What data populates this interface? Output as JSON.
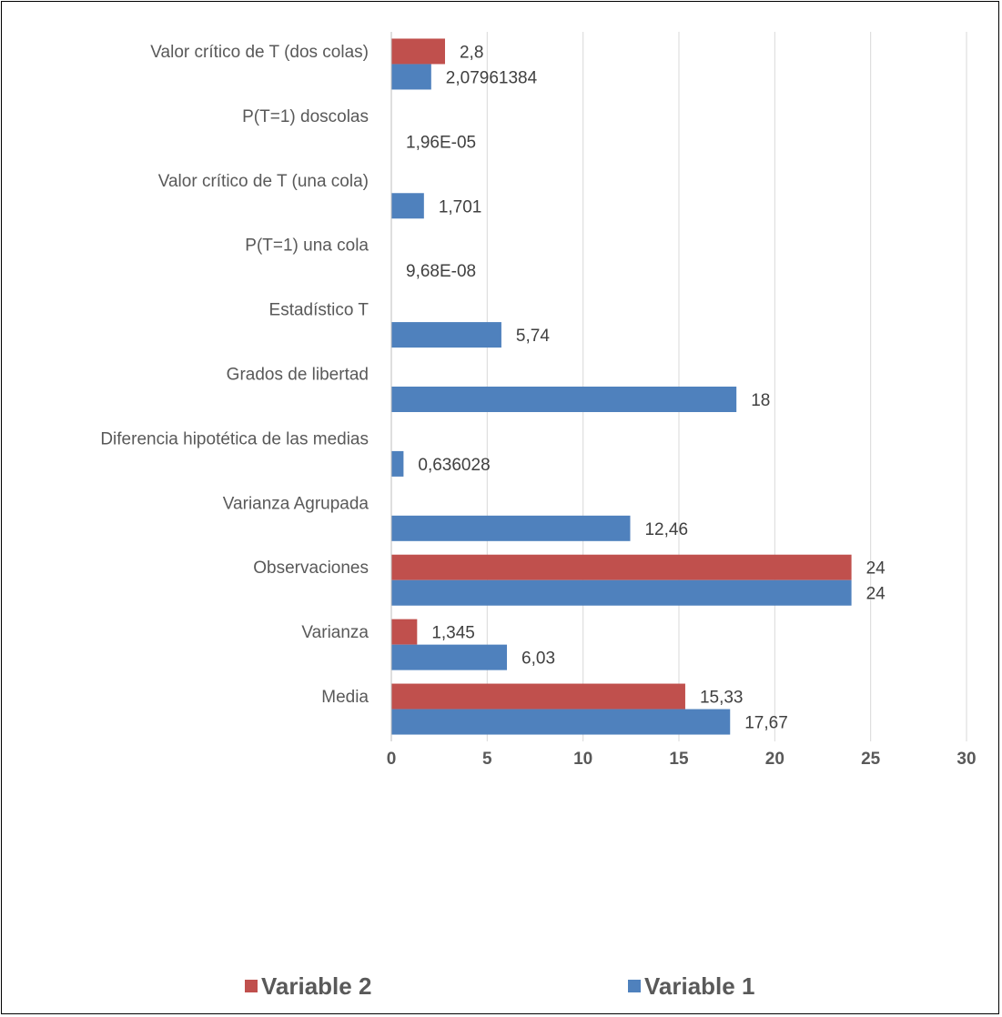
{
  "chart_data": {
    "type": "bar",
    "orientation": "horizontal",
    "categories": [
      "Media",
      "Varianza",
      "Observaciones",
      "Varianza Agrupada",
      "Diferencia hipotética de las medias",
      "Grados de libertad",
      "Estadístico T",
      "P(T=1) una cola",
      "Valor crítico de T (una cola)",
      "P(T=1) doscolas",
      "Valor crítico de T (dos colas)"
    ],
    "series": [
      {
        "name": "Variable 2",
        "color": "#c0504d",
        "values": [
          15.33,
          1.345,
          24,
          null,
          null,
          null,
          null,
          null,
          null,
          null,
          2.8
        ],
        "labels": [
          "15,33",
          "1,345",
          "24",
          null,
          null,
          null,
          null,
          null,
          null,
          null,
          "2,8"
        ]
      },
      {
        "name": "Variable 1",
        "color": "#4f81bd",
        "values": [
          17.67,
          6.03,
          24,
          12.46,
          0.636028,
          18,
          5.74,
          9.68e-08,
          1.701,
          1.96e-05,
          2.07961384
        ],
        "labels": [
          "17,67",
          "6,03",
          "24",
          "12,46",
          "0,636028",
          "18",
          "5,74",
          "9,68E-08",
          "1,701",
          "1,96E-05",
          "2,07961384"
        ]
      }
    ],
    "xlim": [
      0,
      30
    ],
    "xticks": [
      0,
      5,
      10,
      15,
      20,
      25,
      30
    ],
    "xtick_labels": [
      "0",
      "5",
      "10",
      "15",
      "20",
      "25",
      "30"
    ],
    "title": "",
    "xlabel": "",
    "ylabel": "",
    "grid": "vertical",
    "legend_position": "bottom",
    "gridline_color": "#d9d9d9",
    "axis_color": "#bfbfbf"
  }
}
